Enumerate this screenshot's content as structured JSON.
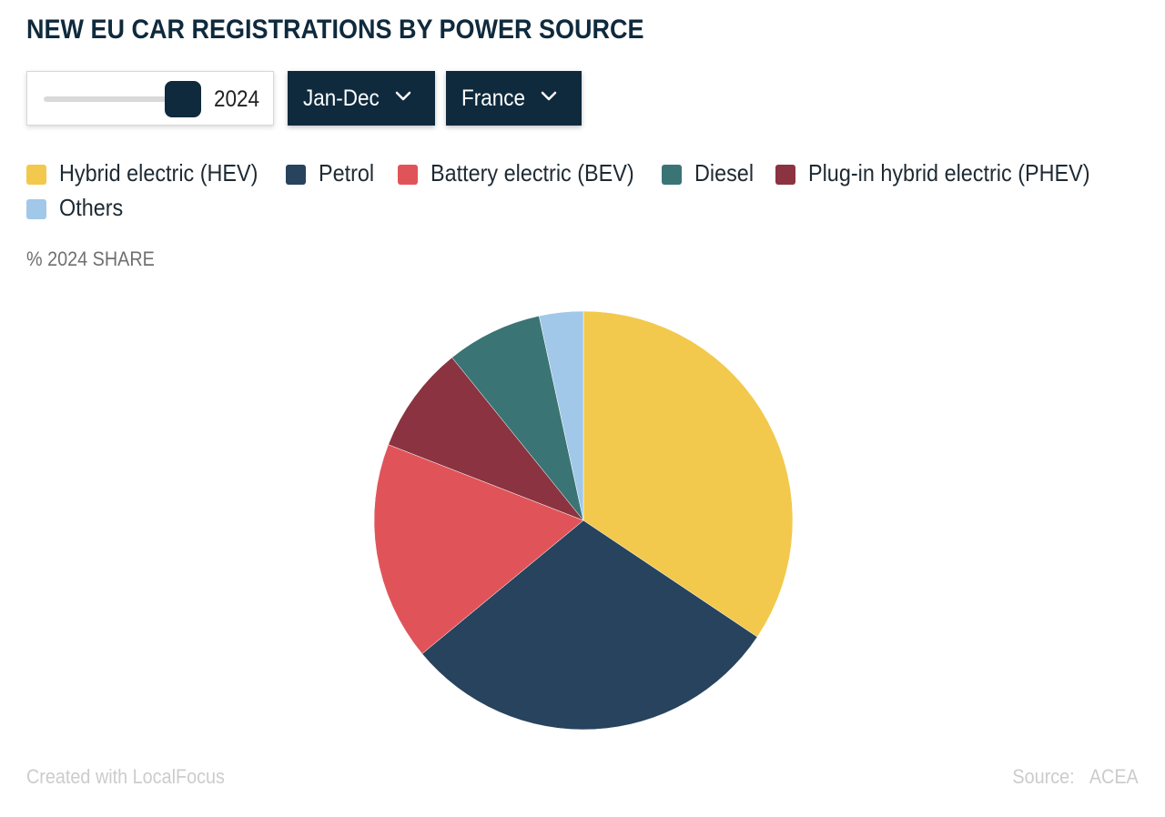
{
  "title": "NEW EU CAR REGISTRATIONS BY POWER SOURCE",
  "controls": {
    "year_value": "2024",
    "period_label": "Jan-Dec",
    "country_label": "France"
  },
  "subtitle": "% 2024 SHARE",
  "footer": {
    "created_with": "Created with LocalFocus",
    "source_label": "Source:",
    "source_value": "ACEA"
  },
  "colors": {
    "accent": "#0f2a3d"
  },
  "chart_data": {
    "type": "pie",
    "title": "NEW EU CAR REGISTRATIONS BY POWER SOURCE",
    "legend_position": "top-left",
    "slices": [
      {
        "label": "Hybrid electric (HEV)",
        "value": 34.4,
        "color": "#f2c94c"
      },
      {
        "label": "Petrol",
        "value": 29.6,
        "color": "#27435d"
      },
      {
        "label": "Battery electric (BEV)",
        "value": 16.9,
        "color": "#e05459"
      },
      {
        "label": "Plug-in hybrid electric (PHEV)",
        "value": 8.3,
        "color": "#8b3340"
      },
      {
        "label": "Diesel",
        "value": 7.4,
        "color": "#3b7474"
      },
      {
        "label": "Others",
        "value": 3.4,
        "color": "#a1c8e8"
      }
    ],
    "legend_order": [
      "Hybrid electric (HEV)",
      "Petrol",
      "Battery electric (BEV)",
      "Diesel",
      "Plug-in hybrid electric (PHEV)",
      "Others"
    ]
  }
}
